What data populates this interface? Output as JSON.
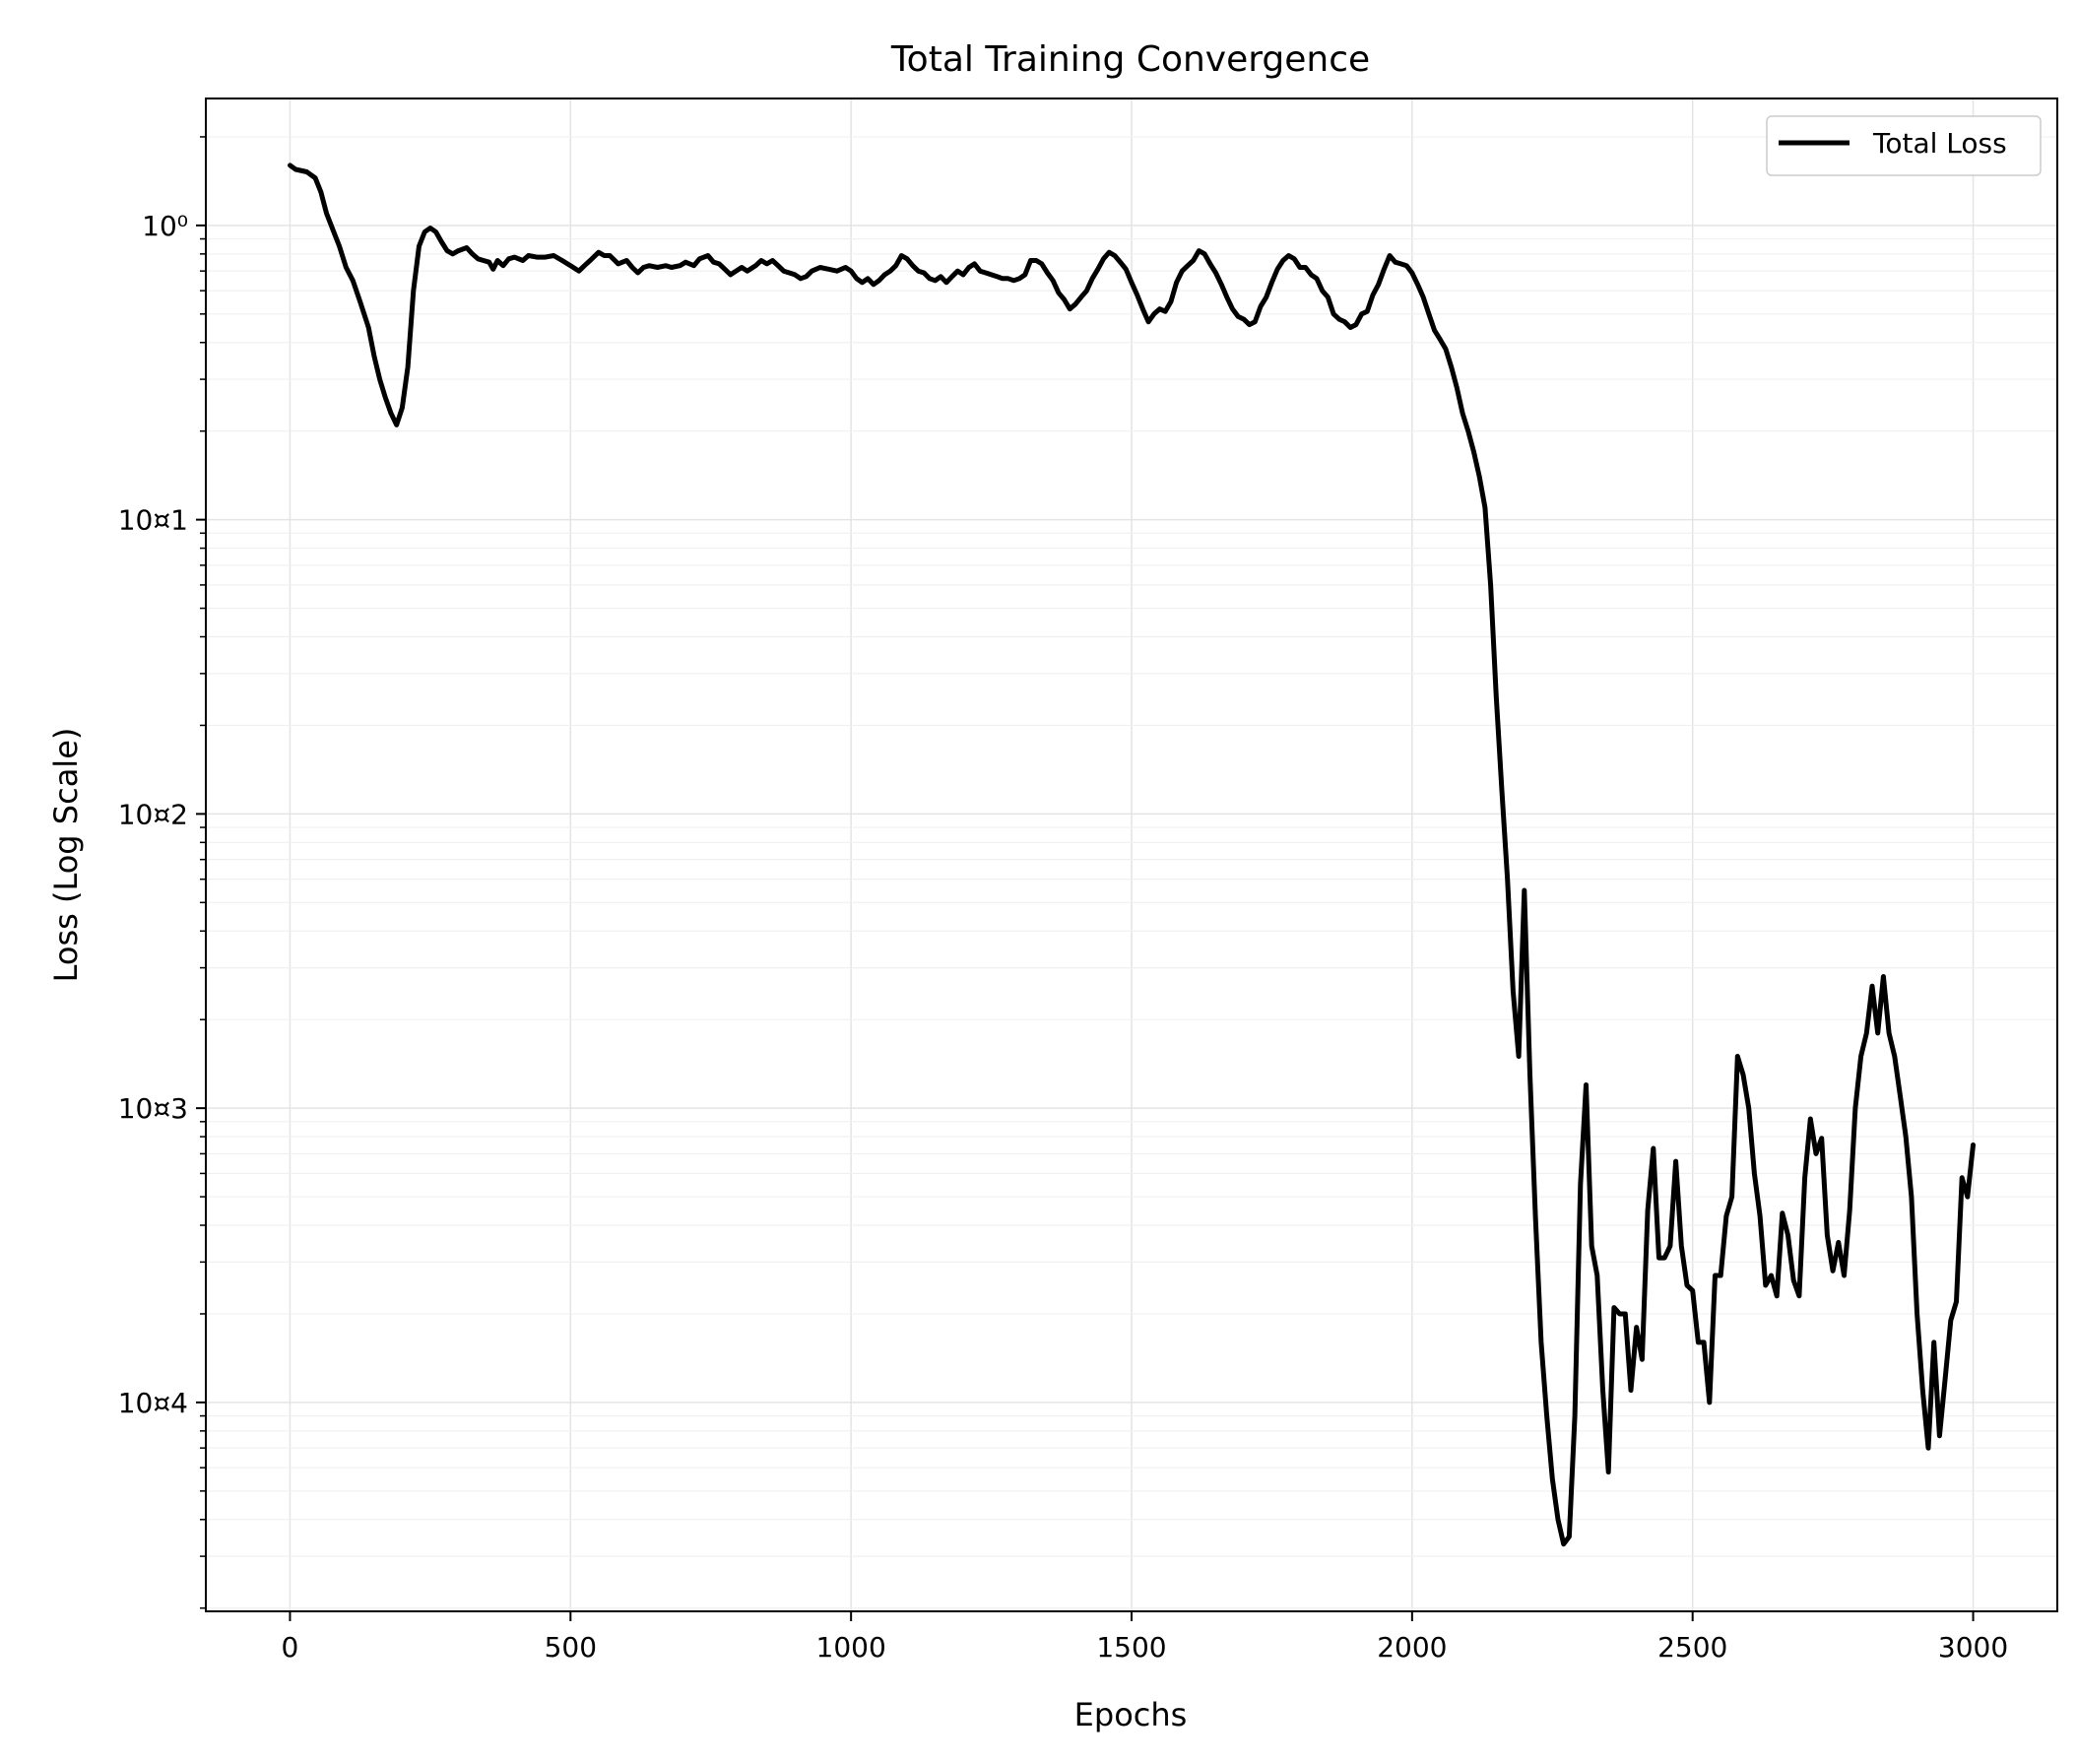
{
  "chart_data": {
    "type": "line",
    "title": "Total Training Convergence",
    "xlabel": "Epochs",
    "ylabel": "Loss (Log Scale)",
    "yscale": "log",
    "xlim": [
      -150,
      3150
    ],
    "ylim": [
      1.95e-05,
      2.7
    ],
    "grid": true,
    "legend_position": "top-right",
    "x_ticks": [
      {
        "value": 0,
        "label": "0"
      },
      {
        "value": 500,
        "label": "500"
      },
      {
        "value": 1000,
        "label": "1000"
      },
      {
        "value": 1500,
        "label": "1500"
      },
      {
        "value": 2000,
        "label": "2000"
      },
      {
        "value": 2500,
        "label": "2500"
      },
      {
        "value": 3000,
        "label": "3000"
      }
    ],
    "y_ticks": [
      {
        "value": 1,
        "label": "10⁰"
      },
      {
        "value": 0.1,
        "label": "10¤1"
      },
      {
        "value": 0.01,
        "label": "10¤2"
      },
      {
        "value": 0.001,
        "label": "10¤3"
      },
      {
        "value": 0.0001,
        "label": "10¤4"
      }
    ],
    "series": [
      {
        "name": "Total Loss",
        "color": "#000000",
        "x": [
          0,
          10,
          30,
          45,
          55,
          65,
          78,
          88,
          100,
          112,
          125,
          140,
          150,
          160,
          170,
          180,
          190,
          200,
          210,
          220,
          230,
          240,
          250,
          260,
          270,
          280,
          290,
          300,
          315,
          325,
          335,
          345,
          355,
          362,
          370,
          380,
          390,
          400,
          415,
          425,
          440,
          455,
          470,
          485,
          500,
          515,
          525,
          535,
          550,
          560,
          570,
          585,
          600,
          610,
          620,
          630,
          640,
          655,
          670,
          680,
          695,
          705,
          720,
          730,
          745,
          755,
          765,
          775,
          785,
          795,
          805,
          815,
          830,
          840,
          850,
          860,
          870,
          880,
          890,
          900,
          910,
          920,
          930,
          945,
          960,
          975,
          990,
          1000,
          1010,
          1020,
          1030,
          1040,
          1050,
          1060,
          1070,
          1080,
          1090,
          1100,
          1110,
          1120,
          1130,
          1140,
          1150,
          1160,
          1170,
          1180,
          1190,
          1200,
          1210,
          1220,
          1230,
          1240,
          1250,
          1260,
          1270,
          1280,
          1290,
          1300,
          1310,
          1320,
          1330,
          1340,
          1350,
          1360,
          1370,
          1380,
          1390,
          1400,
          1410,
          1420,
          1430,
          1440,
          1450,
          1460,
          1470,
          1480,
          1490,
          1500,
          1510,
          1520,
          1530,
          1540,
          1550,
          1560,
          1570,
          1580,
          1590,
          1600,
          1610,
          1620,
          1630,
          1640,
          1650,
          1660,
          1670,
          1680,
          1690,
          1700,
          1710,
          1720,
          1730,
          1740,
          1750,
          1760,
          1770,
          1780,
          1790,
          1800,
          1810,
          1820,
          1830,
          1840,
          1850,
          1860,
          1870,
          1880,
          1890,
          1900,
          1910,
          1920,
          1930,
          1940,
          1950,
          1960,
          1970,
          1980,
          1990,
          2000,
          2010,
          2020,
          2030,
          2040,
          2050,
          2060,
          2070,
          2080,
          2090,
          2100,
          2110,
          2120,
          2130,
          2140,
          2150,
          2160,
          2170,
          2180,
          2190,
          2200,
          2210,
          2220,
          2230,
          2240,
          2250,
          2260,
          2270,
          2280,
          2290,
          2300,
          2310,
          2320,
          2330,
          2340,
          2350,
          2360,
          2370,
          2380,
          2390,
          2400,
          2410,
          2420,
          2430,
          2440,
          2450,
          2460,
          2470,
          2480,
          2490,
          2500,
          2510,
          2520,
          2530,
          2540,
          2550,
          2560,
          2570,
          2580,
          2590,
          2600,
          2610,
          2620,
          2630,
          2640,
          2650,
          2660,
          2670,
          2680,
          2690,
          2700,
          2710,
          2720,
          2730,
          2740,
          2750,
          2760,
          2770,
          2780,
          2790,
          2800,
          2810,
          2820,
          2830,
          2840,
          2850,
          2860,
          2870,
          2880,
          2890,
          2900,
          2910,
          2920,
          2930,
          2940,
          2950,
          2960,
          2970,
          2980,
          2990,
          3000
        ],
        "y": [
          1.6,
          1.55,
          1.52,
          1.45,
          1.3,
          1.1,
          0.95,
          0.85,
          0.72,
          0.65,
          0.55,
          0.45,
          0.36,
          0.3,
          0.26,
          0.23,
          0.21,
          0.24,
          0.33,
          0.6,
          0.85,
          0.95,
          0.98,
          0.95,
          0.88,
          0.82,
          0.8,
          0.82,
          0.84,
          0.8,
          0.77,
          0.76,
          0.75,
          0.71,
          0.76,
          0.73,
          0.77,
          0.78,
          0.76,
          0.79,
          0.78,
          0.78,
          0.79,
          0.76,
          0.73,
          0.7,
          0.73,
          0.76,
          0.81,
          0.79,
          0.79,
          0.74,
          0.76,
          0.72,
          0.69,
          0.72,
          0.73,
          0.72,
          0.73,
          0.72,
          0.73,
          0.75,
          0.73,
          0.77,
          0.79,
          0.75,
          0.74,
          0.71,
          0.68,
          0.7,
          0.72,
          0.7,
          0.73,
          0.76,
          0.74,
          0.76,
          0.73,
          0.7,
          0.69,
          0.68,
          0.66,
          0.67,
          0.7,
          0.72,
          0.71,
          0.7,
          0.72,
          0.7,
          0.66,
          0.64,
          0.66,
          0.63,
          0.65,
          0.68,
          0.7,
          0.73,
          0.79,
          0.77,
          0.73,
          0.7,
          0.69,
          0.66,
          0.65,
          0.67,
          0.64,
          0.67,
          0.7,
          0.68,
          0.72,
          0.74,
          0.7,
          0.69,
          0.68,
          0.67,
          0.66,
          0.66,
          0.65,
          0.66,
          0.68,
          0.76,
          0.76,
          0.74,
          0.69,
          0.65,
          0.59,
          0.56,
          0.52,
          0.54,
          0.57,
          0.6,
          0.66,
          0.71,
          0.77,
          0.81,
          0.79,
          0.75,
          0.71,
          0.64,
          0.58,
          0.52,
          0.47,
          0.5,
          0.52,
          0.51,
          0.55,
          0.64,
          0.7,
          0.73,
          0.76,
          0.82,
          0.8,
          0.74,
          0.69,
          0.63,
          0.57,
          0.52,
          0.49,
          0.48,
          0.46,
          0.47,
          0.53,
          0.57,
          0.64,
          0.71,
          0.76,
          0.79,
          0.77,
          0.72,
          0.72,
          0.68,
          0.66,
          0.6,
          0.57,
          0.5,
          0.48,
          0.47,
          0.45,
          0.46,
          0.5,
          0.51,
          0.58,
          0.63,
          0.71,
          0.79,
          0.75,
          0.74,
          0.73,
          0.69,
          0.63,
          0.57,
          0.5,
          0.44,
          0.41,
          0.38,
          0.33,
          0.28,
          0.23,
          0.2,
          0.17,
          0.14,
          0.11,
          0.06,
          0.025,
          0.012,
          0.006,
          0.0025,
          0.0015,
          0.0055,
          0.0013,
          0.00042,
          0.00016,
          9e-05,
          5.5e-05,
          4e-05,
          3.3e-05,
          3.5e-05,
          9e-05,
          0.00055,
          0.0012,
          0.00034,
          0.00027,
          0.00011,
          5.8e-05,
          0.00021,
          0.0002,
          0.0002,
          0.00011,
          0.00018,
          0.00014,
          0.00045,
          0.00073,
          0.00031,
          0.00031,
          0.00034,
          0.00066,
          0.00034,
          0.00025,
          0.00024,
          0.00016,
          0.00016,
          0.0001,
          0.00027,
          0.00027,
          0.00043,
          0.0005,
          0.0015,
          0.0013,
          0.001,
          0.0006,
          0.00043,
          0.00025,
          0.00027,
          0.00023,
          0.00044,
          0.00037,
          0.00026,
          0.00023,
          0.00058,
          0.00092,
          0.0007,
          0.00079,
          0.00037,
          0.00028,
          0.00035,
          0.00027,
          0.00045,
          0.001,
          0.0015,
          0.0018,
          0.0026,
          0.0018,
          0.0028,
          0.0018,
          0.0015,
          0.0011,
          0.0008,
          0.0005,
          0.0002,
          0.00011,
          7e-05,
          0.00016,
          7.7e-05,
          0.00012,
          0.00019,
          0.00022,
          0.00058,
          0.0005,
          0.00075
        ]
      }
    ]
  }
}
